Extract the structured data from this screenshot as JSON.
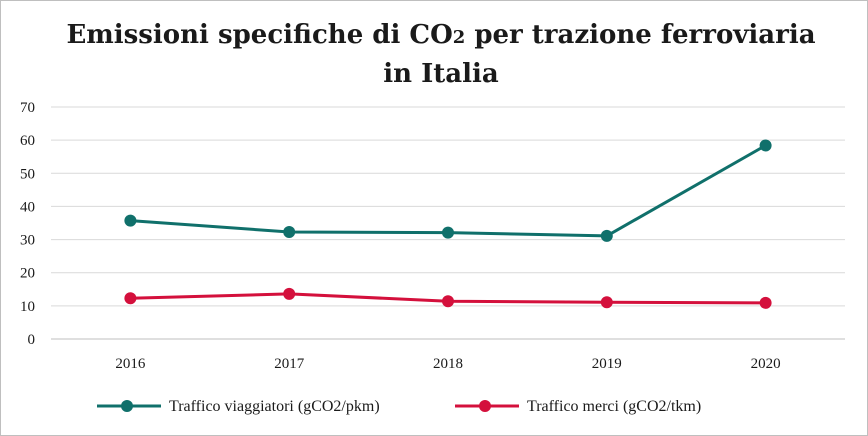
{
  "chart_data": {
    "type": "line",
    "title_main": "Emissioni specifiche di CO",
    "title_sub": "2",
    "title_rest": " per trazione ferroviaria in Italia",
    "categories": [
      "2016",
      "2017",
      "2018",
      "2019",
      "2020"
    ],
    "ylim": [
      0,
      70
    ],
    "yticks": [
      "0",
      "10",
      "20",
      "30",
      "40",
      "50",
      "60",
      "70"
    ],
    "grid": true,
    "legend_position": "bottom",
    "series": [
      {
        "name": "Traffico viaggiatori (gCO2/pkm)",
        "color": "#10706b",
        "values": [
          35.7,
          32.3,
          32.1,
          31.1,
          58.4
        ]
      },
      {
        "name": "Traffico merci (gCO2/tkm)",
        "color": "#d4103c",
        "values": [
          12.3,
          13.6,
          11.4,
          11.1,
          10.9
        ]
      }
    ]
  }
}
